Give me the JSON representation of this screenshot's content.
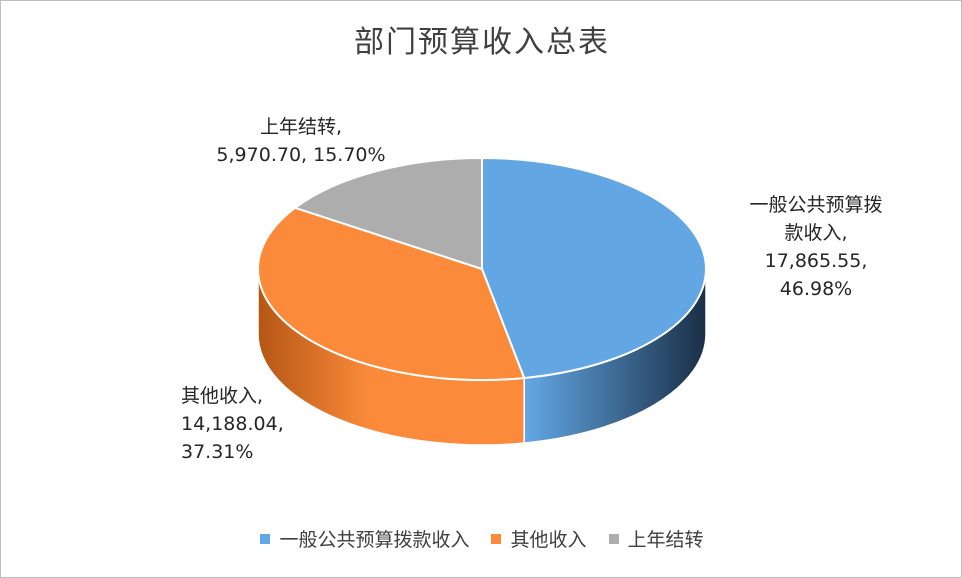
{
  "chart_data": {
    "type": "pie",
    "title": "部门预算收入总表",
    "series": [
      {
        "name": "一般公共预算拨款收入",
        "value": 17865.55,
        "value_text": "17,865.55,",
        "percent": 46.98,
        "percent_text": "46.98%",
        "label_lines": [
          "一般公共预算拨",
          "款收入,",
          "17,865.55,",
          "46.98%"
        ],
        "color": "#62a6e3",
        "dark": "#1a2f46"
      },
      {
        "name": "其他收入",
        "value": 14188.04,
        "value_text": "14,188.04,",
        "percent": 37.31,
        "percent_text": "37.31%",
        "label_lines": [
          "其他收入,",
          "14,188.04,",
          "37.31%"
        ],
        "color": "#fb8b3b",
        "dark": "#b55614"
      },
      {
        "name": "上年结转",
        "value": 5970.7,
        "value_text": "5,970.70,",
        "percent": 15.7,
        "percent_text": "15.70%",
        "label_lines": [
          "上年结转,",
          "5,970.70, 15.70%"
        ],
        "color": "#adadad",
        "dark": "#7a7a7a"
      }
    ],
    "legend_position": "bottom",
    "style": "3d-pie"
  }
}
